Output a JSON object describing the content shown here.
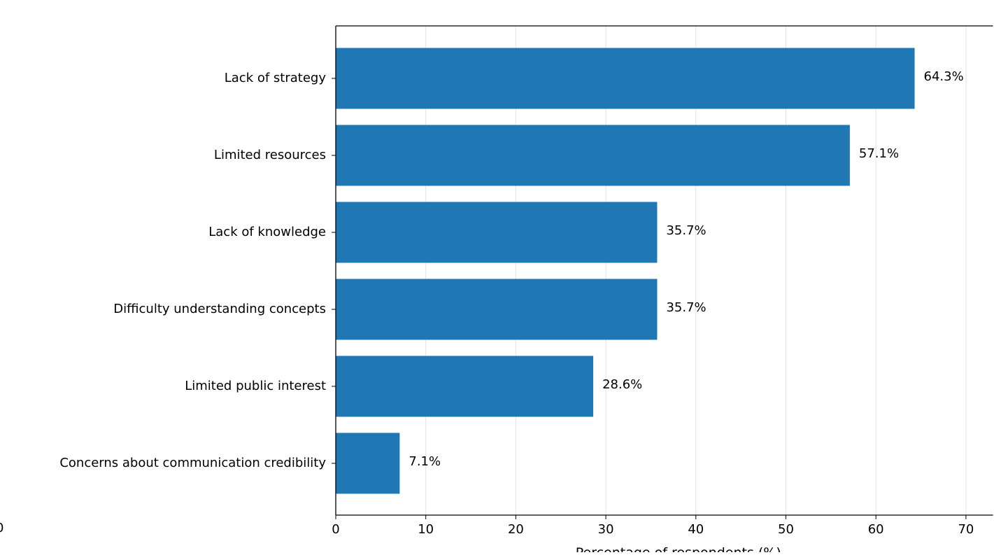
{
  "chart_data": {
    "type": "bar",
    "orientation": "horizontal",
    "categories": [
      "Lack of strategy",
      "Limited resources",
      "Lack of knowledge",
      "Difficulty understanding concepts",
      "Limited public interest",
      "Concerns about communication credibility"
    ],
    "values": [
      64.3,
      57.1,
      35.7,
      35.7,
      28.6,
      7.1
    ],
    "value_labels": [
      "64.3%",
      "57.1%",
      "35.7%",
      "35.7%",
      "28.6%",
      "7.1%"
    ],
    "title": "",
    "xlabel": "Percentage of respondents (%)",
    "ylabel": "",
    "xlim": [
      0,
      73
    ],
    "x_ticks": [
      0,
      10,
      20,
      30,
      40,
      50,
      60,
      70
    ],
    "x_tick_labels": [
      "0",
      "10",
      "20",
      "30",
      "40",
      "50",
      "60",
      "70"
    ],
    "stray_tick_label": "0",
    "grid": "x-axis vertical lines",
    "bar_color": "#1f77b4",
    "grid_color": "#e2e2e2",
    "legend": "none"
  }
}
